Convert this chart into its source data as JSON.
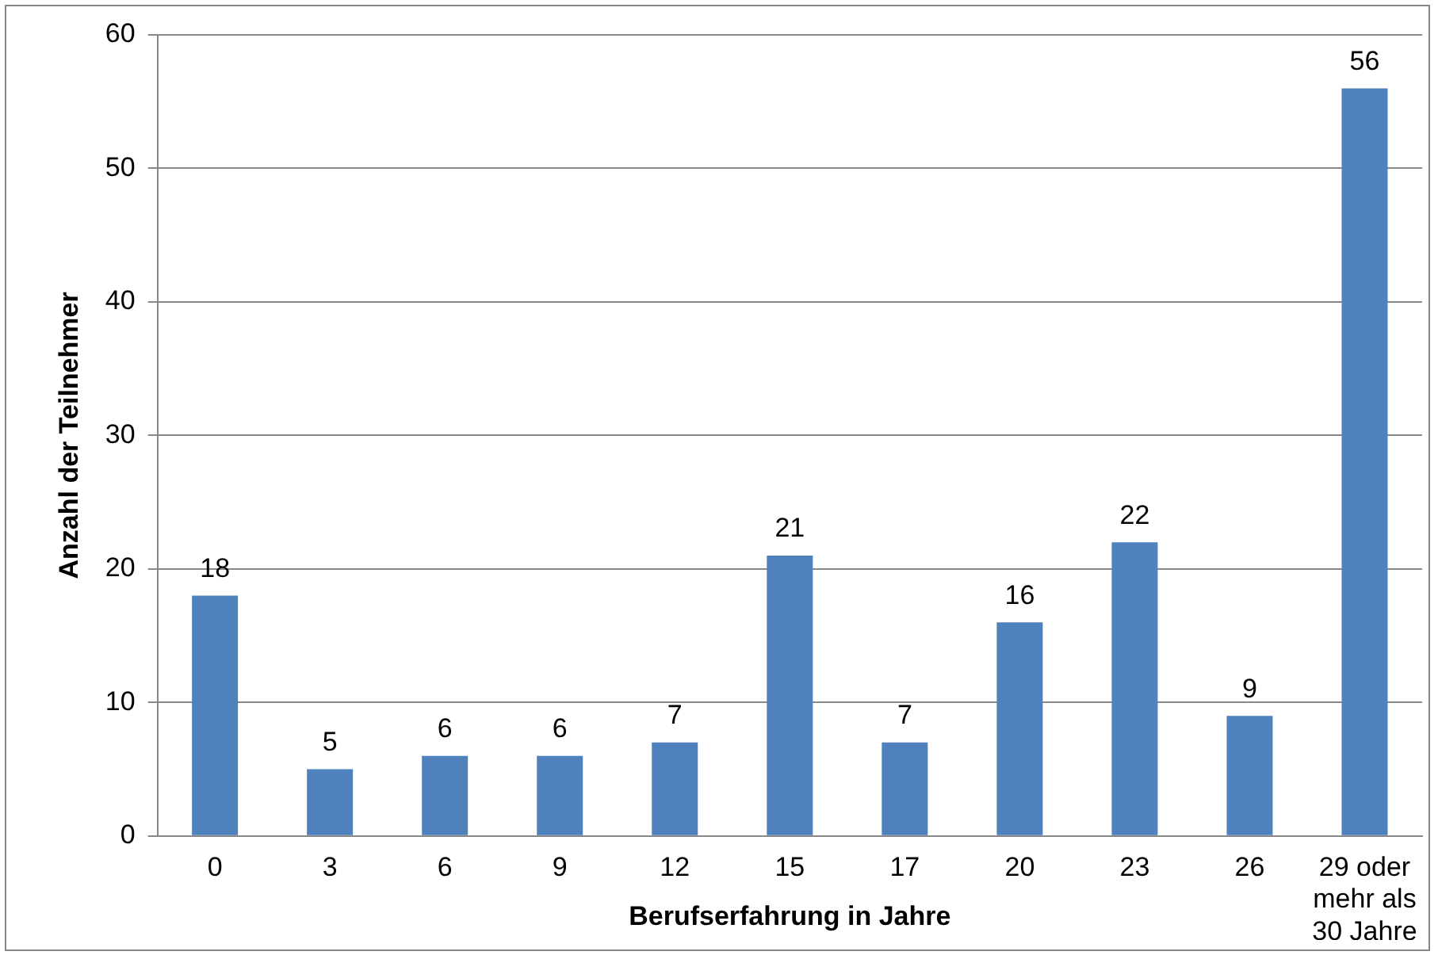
{
  "chart_data": {
    "type": "bar",
    "xlabel": "Berufserfahrung in Jahre",
    "ylabel": "Anzahl der Teilnehmer",
    "categories": [
      "0",
      "3",
      "6",
      "9",
      "12",
      "15",
      "17",
      "20",
      "23",
      "26",
      "29 oder mehr als 30 Jahre"
    ],
    "values": [
      18,
      5,
      6,
      6,
      7,
      21,
      7,
      16,
      22,
      9,
      56
    ],
    "color": "#4f81bd",
    "ylim": [
      0,
      60
    ],
    "yticks": [
      0,
      10,
      20,
      30,
      40,
      50,
      60
    ],
    "grid": "y",
    "data_labels": true,
    "legend": false
  }
}
